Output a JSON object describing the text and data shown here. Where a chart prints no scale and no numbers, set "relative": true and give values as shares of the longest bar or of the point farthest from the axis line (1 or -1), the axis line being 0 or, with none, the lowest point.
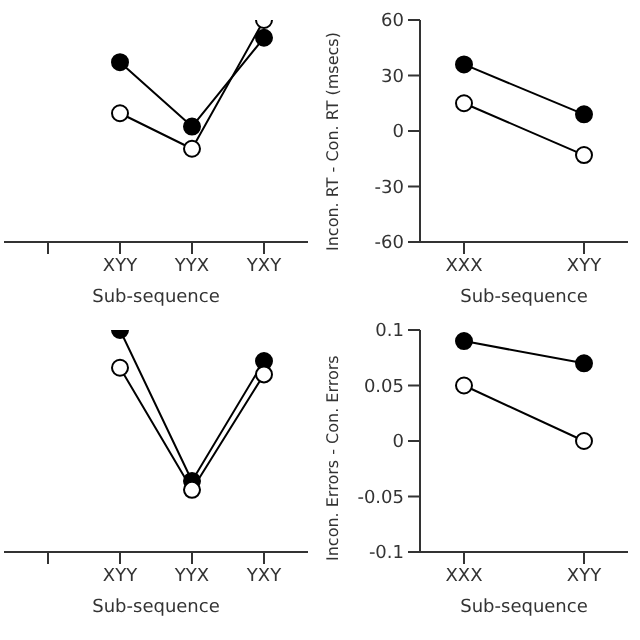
{
  "chart_data": [
    {
      "type": "line",
      "relative": true,
      "xlabel": "Sub-sequence",
      "categories": [
        null,
        "XYY",
        "YYX",
        "YXY"
      ],
      "marker": "circle",
      "series": [
        {
          "color": "#000000",
          "values": [
            null,
            0.81,
            0.52,
            0.92
          ]
        },
        {
          "color": "#000000",
          "values": [
            null,
            0.58,
            0.42,
            1
          ]
        }
      ]
    },
    {
      "type": "line",
      "xlabel": "Sub-sequence",
      "ylabel": "Incon. RT - Con. RT (msecs)",
      "categories": [
        "XXX",
        "XYY"
      ],
      "ylim": [
        -60,
        60
      ],
      "yticks": [
        -60,
        -30,
        0,
        30,
        60
      ],
      "marker": "circle",
      "series": [
        {
          "color": "#000000",
          "values": [
            36,
            9
          ]
        },
        {
          "color": "#000000",
          "values": [
            15,
            -13
          ]
        }
      ]
    },
    {
      "type": "line",
      "relative": true,
      "xlabel": "Sub-sequence",
      "categories": [
        null,
        "XYY",
        "YYX",
        "YXY"
      ],
      "marker": "circle",
      "series": [
        {
          "color": "#000000",
          "values": [
            null,
            1,
            0.32,
            0.86
          ]
        },
        {
          "color": "#000000",
          "values": [
            null,
            0.83,
            0.28,
            0.8
          ]
        }
      ]
    },
    {
      "type": "line",
      "xlabel": "Sub-sequence",
      "ylabel": "Incon. Errors - Con. Errors",
      "categories": [
        "XXX",
        "XYY"
      ],
      "ylim": [
        -0.1,
        0.1
      ],
      "yticks": [
        -0.1,
        -0.05,
        0,
        0.05,
        0.1
      ],
      "marker": "circle",
      "series": [
        {
          "color": "#000000",
          "values": [
            0.09,
            0.07
          ]
        },
        {
          "color": "#000000",
          "values": [
            0.05,
            0
          ]
        }
      ]
    }
  ]
}
